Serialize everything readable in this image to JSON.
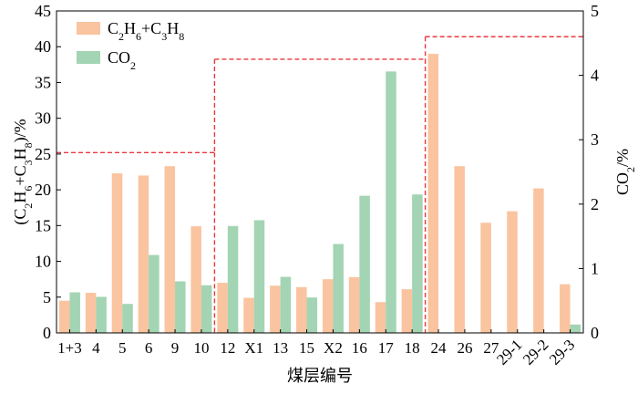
{
  "chart_data": {
    "type": "bar",
    "categories": [
      "1+3",
      "4",
      "5",
      "6",
      "9",
      "10",
      "12",
      "X1",
      "13",
      "15",
      "X2",
      "16",
      "17",
      "18",
      "24",
      "26",
      "27",
      "29-1",
      "29-2",
      "29-3"
    ],
    "series": [
      {
        "name": "C2H6+C3H8",
        "legend_main": "C",
        "legend_parts": [
          [
            "2",
            ""
          ],
          [
            "H",
            ""
          ],
          [
            "6",
            ""
          ],
          [
            "+C",
            ""
          ],
          [
            "3",
            ""
          ],
          [
            "H",
            ""
          ],
          [
            "8",
            ""
          ]
        ],
        "axis": "left",
        "color": "#f9c49f",
        "values": [
          4.5,
          5.6,
          22.3,
          22.0,
          23.3,
          14.9,
          7.0,
          4.9,
          6.6,
          6.4,
          7.5,
          7.8,
          4.3,
          6.1,
          39.0,
          23.3,
          15.4,
          17.0,
          20.2,
          6.8
        ]
      },
      {
        "name": "CO2",
        "axis": "right",
        "color": "#a3d4b3",
        "values": [
          0.63,
          0.56,
          0.45,
          1.21,
          0.8,
          0.74,
          1.66,
          1.75,
          0.87,
          0.55,
          1.38,
          2.13,
          4.06,
          2.15,
          null,
          null,
          null,
          null,
          null,
          0.13
        ]
      }
    ],
    "y_left": {
      "label_parts": [
        "(C",
        "2",
        "H",
        "6",
        "+C",
        "3",
        "H",
        "8",
        ")/%"
      ],
      "ylim": [
        0,
        45
      ],
      "ticks": [
        "0",
        "5",
        "10",
        "15",
        "20",
        "25",
        "30",
        "35",
        "40",
        "45"
      ]
    },
    "y_right": {
      "label_parts": [
        "CO",
        "2",
        "/%"
      ],
      "ylim": [
        0,
        5
      ],
      "ticks": [
        "0",
        "1",
        "2",
        "3",
        "4",
        "5"
      ]
    },
    "xlabel": "煤层编号",
    "reference_lines": {
      "axis": "right",
      "color": "#e8383d",
      "segments": [
        {
          "from_category": 0,
          "to_category": 5,
          "value": 2.8
        },
        {
          "from_category": 6,
          "to_category": 13,
          "value": 4.25
        },
        {
          "from_category": 14,
          "to_category": 19,
          "value": 4.6
        }
      ]
    },
    "legend": {
      "placement": "top-left",
      "entries": [
        {
          "series": 0,
          "text": "C2H6+C3H8"
        },
        {
          "series": 1,
          "text": "CO2"
        }
      ]
    },
    "grid": false
  }
}
